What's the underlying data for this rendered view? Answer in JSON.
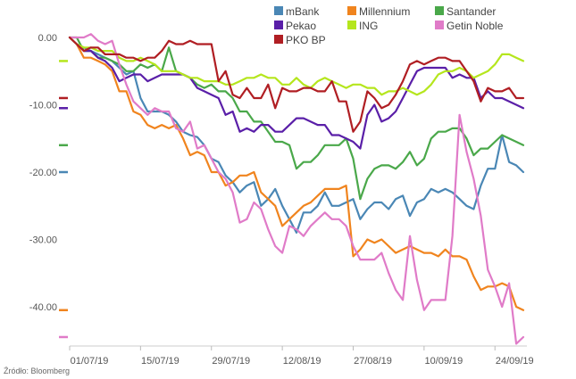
{
  "source_note": "Źródło: Bloomberg",
  "chart_data": {
    "type": "line",
    "ylim": [
      -45,
      0
    ],
    "y_ticks": [
      "0.00",
      "-10.00",
      "-20.00",
      "-30.00",
      "-40.00"
    ],
    "y_tick_values": [
      0,
      -10,
      -20,
      -30,
      -40
    ],
    "x_ticks": [
      "01/07/19",
      "15/07/19",
      "29/07/19",
      "12/08/19",
      "27/08/19",
      "10/09/19",
      "24/09/19"
    ],
    "x_tick_index": [
      0,
      10,
      20,
      30,
      40,
      50,
      60
    ],
    "n_points": 65,
    "grid": false,
    "legend_position": "top-right",
    "series": [
      {
        "name": "mBank",
        "color": "#4a87b5",
        "values": [
          0,
          -1,
          -1.5,
          -2,
          -2.5,
          -3,
          -3.5,
          -4.5,
          -5.5,
          -5,
          -9,
          -11,
          -11,
          -11,
          -11.5,
          -12.5,
          -14,
          -14.5,
          -14.8,
          -16,
          -18,
          -18.5,
          -20.5,
          -21.5,
          -23,
          -22,
          -21.5,
          -25,
          -24,
          -22.5,
          -25,
          -27,
          -29,
          -26,
          -26,
          -25,
          -23,
          -25,
          -25,
          -24.5,
          -24,
          -27,
          -25.5,
          -24.5,
          -24.5,
          -25.5,
          -24,
          -23.5,
          -26.5,
          -24.5,
          -24,
          -22.5,
          -23,
          -22.5,
          -23,
          -24,
          -25,
          -25.5,
          -22,
          -19.5,
          -19.5,
          -14.5,
          -18.5,
          -19,
          -20
        ]
      },
      {
        "name": "Millennium",
        "color": "#f0841e",
        "values": [
          0,
          -1,
          -3,
          -3,
          -3.5,
          -4,
          -5,
          -8,
          -8,
          -11,
          -11.5,
          -13,
          -13.5,
          -13,
          -13.5,
          -13,
          -15,
          -17.5,
          -17,
          -17.5,
          -20,
          -20,
          -22,
          -21.5,
          -20.5,
          -20.5,
          -20,
          -23,
          -24,
          -25,
          -28,
          -27,
          -26,
          -25,
          -24.5,
          -23.5,
          -22.5,
          -22.5,
          -22.5,
          -22,
          -32.5,
          -31.5,
          -30,
          -30.5,
          -30,
          -31,
          -32,
          -31.5,
          -31,
          -31.5,
          -32,
          -32,
          -32.5,
          -31.5,
          -32.5,
          -32.5,
          -33,
          -35.5,
          -37.5,
          -37,
          -37,
          -36.5,
          -37,
          -40,
          -40.5
        ]
      },
      {
        "name": "Santander",
        "color": "#4aa84a",
        "values": [
          0,
          0,
          -2,
          -2,
          -3,
          -3,
          -3.5,
          -4,
          -5,
          -5,
          -4,
          -4.5,
          -4,
          -5,
          -1.5,
          -5,
          -5.5,
          -6,
          -7,
          -7.5,
          -7,
          -8,
          -8,
          -9,
          -11,
          -11,
          -12.5,
          -12.5,
          -14,
          -15.5,
          -15.5,
          -16,
          -19.5,
          -18.5,
          -18.5,
          -17.5,
          -16,
          -16,
          -16,
          -15,
          -18,
          -24,
          -21,
          -19.5,
          -19,
          -19,
          -19.5,
          -18.5,
          -17,
          -19,
          -18,
          -15,
          -14,
          -14,
          -13.5,
          -13.5,
          -15,
          -17.5,
          -16.5,
          -16.5,
          -15.5,
          -14.5,
          -15,
          -15.5,
          -16
        ]
      },
      {
        "name": "Pekao",
        "color": "#5a1fa8",
        "values": [
          0,
          -1,
          -2,
          -2,
          -3,
          -3.5,
          -4.5,
          -6.5,
          -6,
          -5.5,
          -5.5,
          -6.5,
          -6,
          -5.5,
          -5.5,
          -5.5,
          -5.5,
          -6,
          -7.5,
          -8,
          -8.5,
          -9,
          -11.5,
          -11,
          -14,
          -13.5,
          -14,
          -13,
          -13,
          -14,
          -14,
          -13,
          -12,
          -12,
          -12.5,
          -13,
          -13,
          -14.5,
          -14.5,
          -15,
          -15.5,
          -16.5,
          -11.5,
          -10,
          -12.5,
          -12,
          -11,
          -9,
          -7,
          -5,
          -4.5,
          -4.5,
          -4.5,
          -4.5,
          -6,
          -5.5,
          -6,
          -6,
          -9,
          -8,
          -9,
          -9,
          -9.5,
          -10,
          -10.5
        ]
      },
      {
        "name": "ING",
        "color": "#b5e61d",
        "values": [
          0,
          -1,
          -1.5,
          -1.5,
          -2,
          -2,
          -2,
          -3,
          -3.5,
          -3.5,
          -3,
          -3.5,
          -4,
          -5,
          -5,
          -5,
          -5.5,
          -6,
          -6,
          -6.5,
          -6.5,
          -6.5,
          -7,
          -7,
          -6.5,
          -6,
          -6,
          -5.5,
          -6,
          -6,
          -7,
          -7,
          -6,
          -7,
          -7.5,
          -6.5,
          -6,
          -6.5,
          -7,
          -7.5,
          -7,
          -7,
          -7.5,
          -7.5,
          -8.5,
          -8,
          -8,
          -7.5,
          -8,
          -8.5,
          -8,
          -7,
          -5.5,
          -5,
          -5,
          -4.5,
          -5,
          -6,
          -5.5,
          -5,
          -4,
          -2.5,
          -2.5,
          -3,
          -3.5
        ]
      },
      {
        "name": "Getin Noble",
        "color": "#e07bc8",
        "values": [
          0,
          0,
          0,
          0.5,
          -0.5,
          -1,
          -0.5,
          -4,
          -7,
          -9.5,
          -10.5,
          -11.5,
          -10.5,
          -11,
          -11,
          -13.5,
          -14,
          -12.5,
          -16.5,
          -16,
          -18,
          -20,
          -21,
          -23,
          -27.5,
          -27,
          -24.5,
          -25.5,
          -28.5,
          -31,
          -32,
          -28,
          -28.5,
          -29.5,
          -28,
          -27,
          -26,
          -27,
          -27,
          -28,
          -31,
          -33,
          -33,
          -33,
          -32,
          -35,
          -37.5,
          -39,
          -29.5,
          -36,
          -40.5,
          -39,
          -39,
          -39,
          -29.5,
          -11.5,
          -17,
          -21,
          -26.5,
          -34.5,
          -37,
          -40,
          -36.5,
          -45.5,
          -44.5
        ]
      },
      {
        "name": "PKO BP",
        "color": "#b01e23",
        "values": [
          0,
          -1,
          -2,
          -1.5,
          -1.5,
          -2.5,
          -2.5,
          -2.5,
          -3,
          -3,
          -3.5,
          -3,
          -3,
          -2,
          -0.5,
          -1,
          -1,
          -0.5,
          -1,
          -1,
          -1,
          -6.5,
          -5,
          -8.5,
          -9,
          -7.5,
          -9,
          -9,
          -7,
          -10.5,
          -7.5,
          -8,
          -8,
          -7.5,
          -7.5,
          -8,
          -8,
          -6.5,
          -9.5,
          -9.5,
          -14,
          -12.5,
          -8,
          -9,
          -10.5,
          -10,
          -8.5,
          -6.5,
          -4,
          -3.5,
          -4,
          -3.5,
          -3,
          -3,
          -3.5,
          -3.5,
          -5,
          -6.5,
          -9.5,
          -7.5,
          -8,
          -8,
          -7.5,
          -9,
          -9
        ]
      }
    ]
  }
}
